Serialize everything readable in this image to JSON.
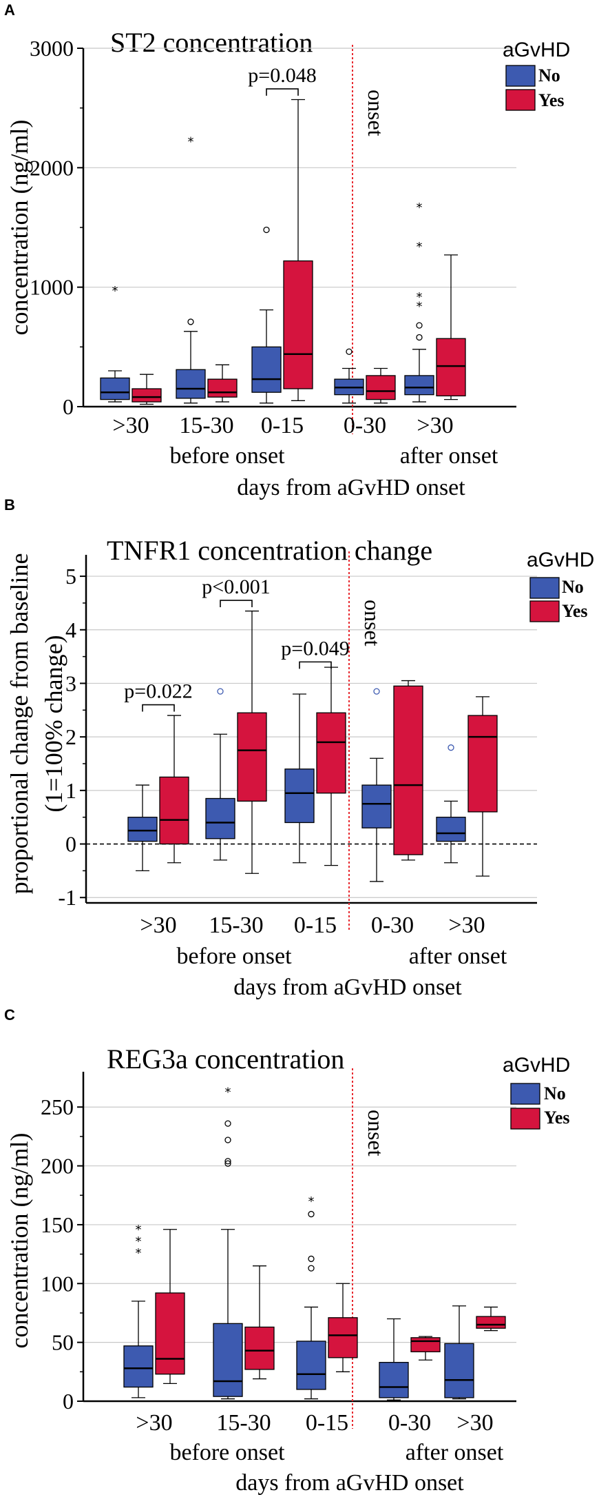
{
  "colors": {
    "no": "#3d5ab0",
    "yes": "#d5143e",
    "onset_line": "#e8292f",
    "grid": "#c8c8c8"
  },
  "chart_data": [
    {
      "type": "box",
      "panel_letter": "A",
      "title": "ST2 concentration",
      "ylabel": "concentration (ng/ml)",
      "xlabel": "days from aGvHD onset",
      "group_labels": [
        "before onset",
        "after onset"
      ],
      "onset_label": "onset",
      "legend": {
        "title": "aGvHD",
        "entries": [
          "No",
          "Yes"
        ]
      },
      "ylim": [
        0,
        3000
      ],
      "yticks": [
        0,
        1000,
        2000,
        3000
      ],
      "tick_labels": [
        "0",
        "1000",
        "2000",
        "3000"
      ],
      "categories": [
        ">30",
        "15-30",
        "0-15",
        "0-30",
        ">30"
      ],
      "onset_after_index": 2,
      "series": [
        {
          "name": "No",
          "boxes": [
            {
              "min": 40,
              "q1": 60,
              "median": 120,
              "q3": 240,
              "max": 300,
              "outliers": [],
              "extremes": [
                980
              ]
            },
            {
              "min": 30,
              "q1": 70,
              "median": 150,
              "q3": 310,
              "max": 630,
              "outliers": [
                710
              ],
              "extremes": [
                2230
              ]
            },
            {
              "min": 30,
              "q1": 120,
              "median": 230,
              "q3": 500,
              "max": 810,
              "outliers": [
                1480
              ],
              "extremes": []
            },
            {
              "min": 30,
              "q1": 100,
              "median": 160,
              "q3": 230,
              "max": 320,
              "outliers": [
                460
              ],
              "extremes": []
            },
            {
              "min": 40,
              "q1": 100,
              "median": 160,
              "q3": 260,
              "max": 480,
              "outliers": [
                580,
                680
              ],
              "extremes": [
                850,
                930,
                1350,
                1680
              ]
            }
          ]
        },
        {
          "name": "Yes",
          "boxes": [
            {
              "min": 20,
              "q1": 40,
              "median": 80,
              "q3": 150,
              "max": 270,
              "outliers": [],
              "extremes": []
            },
            {
              "min": 40,
              "q1": 80,
              "median": 120,
              "q3": 230,
              "max": 350,
              "outliers": [],
              "extremes": []
            },
            {
              "min": 50,
              "q1": 150,
              "median": 440,
              "q3": 1220,
              "max": 2570,
              "outliers": [],
              "extremes": []
            },
            {
              "min": 30,
              "q1": 60,
              "median": 130,
              "q3": 260,
              "max": 320,
              "outliers": [],
              "extremes": []
            },
            {
              "min": 60,
              "q1": 90,
              "median": 340,
              "q3": 570,
              "max": 1270,
              "outliers": [],
              "extremes": []
            }
          ]
        }
      ],
      "annotations": [
        {
          "text": "p=0.048",
          "category_index": 2,
          "y": 2660
        }
      ]
    },
    {
      "type": "box",
      "panel_letter": "B",
      "title": "TNFR1 concentration change",
      "ylabel": "proportional change from baseline",
      "ylabel2": "(1=100% change)",
      "xlabel": "days from aGvHD onset",
      "group_labels": [
        "before onset",
        "after onset"
      ],
      "onset_label": "onset",
      "legend": {
        "title": "aGvHD",
        "entries": [
          "No",
          "Yes"
        ]
      },
      "ylim": [
        -1.1,
        5.4
      ],
      "yticks": [
        -1,
        0,
        1,
        2,
        3,
        4,
        5
      ],
      "tick_labels": [
        "-1",
        "0",
        "1",
        "2",
        "3",
        "4",
        "5"
      ],
      "categories": [
        ">30",
        "15-30",
        "0-15",
        "0-30",
        ">30"
      ],
      "onset_after_index": 2,
      "series": [
        {
          "name": "No",
          "boxes": [
            {
              "min": -0.5,
              "q1": 0.05,
              "median": 0.25,
              "q3": 0.5,
              "max": 1.1,
              "outliers": [],
              "extremes": []
            },
            {
              "min": -0.3,
              "q1": 0.1,
              "median": 0.4,
              "q3": 0.85,
              "max": 2.05,
              "outliers": [
                2.85
              ],
              "extremes": []
            },
            {
              "min": -0.35,
              "q1": 0.4,
              "median": 0.95,
              "q3": 1.4,
              "max": 2.8,
              "outliers": [],
              "extremes": []
            },
            {
              "min": -0.7,
              "q1": 0.3,
              "median": 0.75,
              "q3": 1.1,
              "max": 1.6,
              "outliers": [
                2.85
              ],
              "extremes": []
            },
            {
              "min": -0.35,
              "q1": 0.05,
              "median": 0.2,
              "q3": 0.5,
              "max": 0.8,
              "outliers": [
                1.8
              ],
              "extremes": []
            }
          ]
        },
        {
          "name": "Yes",
          "boxes": [
            {
              "min": -0.35,
              "q1": 0.0,
              "median": 0.45,
              "q3": 1.25,
              "max": 2.4,
              "outliers": [],
              "extremes": []
            },
            {
              "min": -0.55,
              "q1": 0.8,
              "median": 1.75,
              "q3": 2.45,
              "max": 4.35,
              "outliers": [],
              "extremes": []
            },
            {
              "min": -0.4,
              "q1": 0.95,
              "median": 1.9,
              "q3": 2.45,
              "max": 3.3,
              "outliers": [],
              "extremes": []
            },
            {
              "min": -0.3,
              "q1": -0.2,
              "median": 1.1,
              "q3": 2.95,
              "max": 3.05,
              "outliers": [],
              "extremes": []
            },
            {
              "min": -0.6,
              "q1": 0.6,
              "median": 2.0,
              "q3": 2.4,
              "max": 2.75,
              "outliers": [],
              "extremes": []
            }
          ]
        }
      ],
      "annotations": [
        {
          "text": "p=0.022",
          "category_index": 0,
          "y": 2.6
        },
        {
          "text": "p<0.001",
          "category_index": 1,
          "y": 4.55
        },
        {
          "text": "p=0.049",
          "category_index": 2,
          "y": 3.4
        }
      ]
    },
    {
      "type": "box",
      "panel_letter": "C",
      "title": "REG3a concentration",
      "ylabel": "concentration (ng/ml)",
      "xlabel": "days from aGvHD onset",
      "group_labels": [
        "before onset",
        "after onset"
      ],
      "onset_label": "onset",
      "legend": {
        "title": "aGvHD",
        "entries": [
          "No",
          "Yes"
        ]
      },
      "ylim": [
        0,
        280
      ],
      "yticks": [
        0,
        50,
        100,
        150,
        200,
        250
      ],
      "tick_labels": [
        "0",
        "50",
        "100",
        "150",
        "200",
        "250"
      ],
      "categories": [
        ">30",
        "15-30",
        "0-15",
        "0-30",
        ">30"
      ],
      "onset_after_index": 2,
      "series": [
        {
          "name": "No",
          "boxes": [
            {
              "min": 3,
              "q1": 12,
              "median": 28,
              "q3": 47,
              "max": 85,
              "outliers": [],
              "extremes": [
                127,
                137,
                147
              ]
            },
            {
              "min": 2,
              "q1": 4,
              "median": 17,
              "q3": 66,
              "max": 146,
              "outliers": [
                202,
                204,
                222,
                236
              ],
              "extremes": [
                264
              ]
            },
            {
              "min": 2,
              "q1": 10,
              "median": 23,
              "q3": 51,
              "max": 80,
              "outliers": [
                113,
                121,
                159
              ],
              "extremes": [
                171
              ]
            },
            {
              "min": 1,
              "q1": 3,
              "median": 12,
              "q3": 33,
              "max": 70,
              "outliers": [],
              "extremes": []
            },
            {
              "min": 2,
              "q1": 3,
              "median": 18,
              "q3": 49,
              "max": 81,
              "outliers": [],
              "extremes": []
            }
          ]
        },
        {
          "name": "Yes",
          "boxes": [
            {
              "min": 15,
              "q1": 23,
              "median": 36,
              "q3": 92,
              "max": 146,
              "outliers": [],
              "extremes": []
            },
            {
              "min": 19,
              "q1": 27,
              "median": 43,
              "q3": 63,
              "max": 115,
              "outliers": [],
              "extremes": []
            },
            {
              "min": 25,
              "q1": 37,
              "median": 56,
              "q3": 71,
              "max": 100,
              "outliers": [],
              "extremes": []
            },
            {
              "min": 35,
              "q1": 42,
              "median": 51,
              "q3": 54,
              "max": 55,
              "outliers": [],
              "extremes": []
            },
            {
              "min": 60,
              "q1": 62,
              "median": 65,
              "q3": 72,
              "max": 80,
              "outliers": [],
              "extremes": []
            }
          ]
        }
      ],
      "annotations": []
    }
  ]
}
